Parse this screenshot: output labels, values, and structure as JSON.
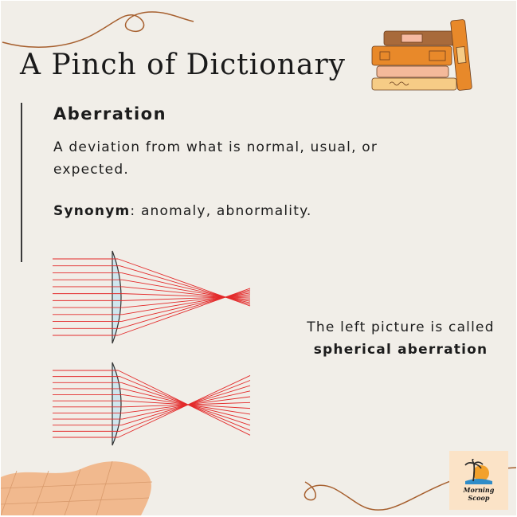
{
  "header": {
    "title": "A Pinch of Dictionary"
  },
  "entry": {
    "word": "Aberration",
    "definition": " A deviation from what is normal, usual, or expected.",
    "synonym_label": "Synonym",
    "synonym_text": ": anomaly, abnormality."
  },
  "caption": {
    "line1": "The left picture is called",
    "line2": "spherical aberration"
  },
  "logo": {
    "line1": "Morning",
    "line2": "Scoop"
  },
  "colors": {
    "background": "#f1eee8",
    "ray": "#e32a2a",
    "lens_fill": "#cfe6ee",
    "blob": "#f1b98e",
    "book_orange": "#e8892a",
    "book_brown": "#a86a3b"
  },
  "icons": [
    "books-stack-icon",
    "lens-diagram-icon",
    "palm-island-logo-icon"
  ]
}
